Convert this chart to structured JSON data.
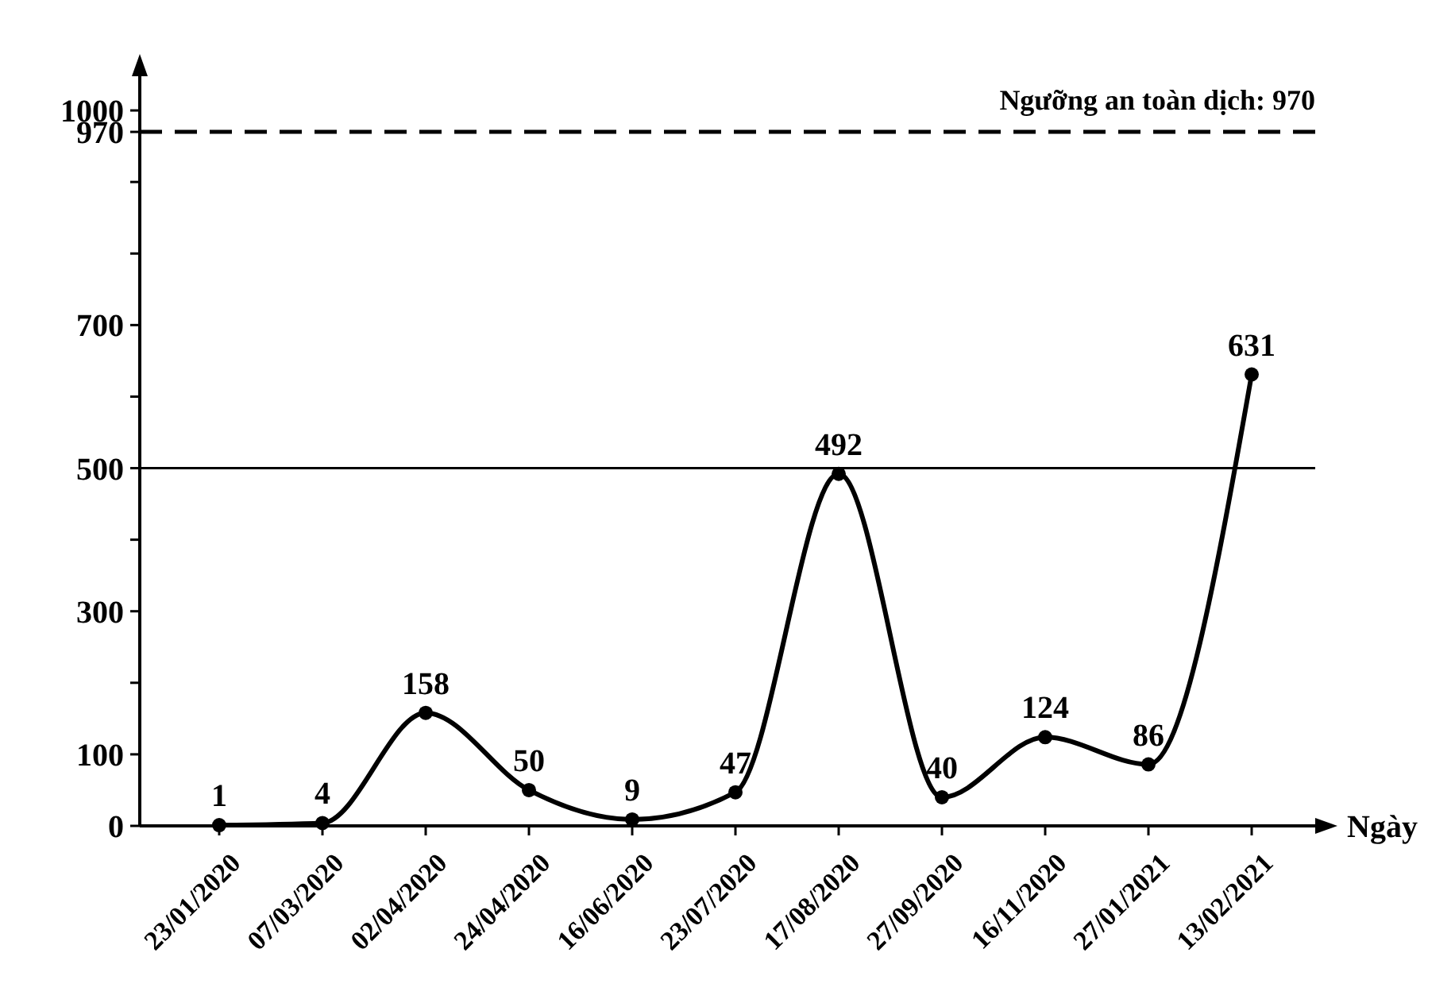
{
  "chart_data": {
    "type": "line",
    "xlabel": "Ngày",
    "categories": [
      "23/01/2020",
      "07/03/2020",
      "02/04/2020",
      "24/04/2020",
      "16/06/2020",
      "23/07/2020",
      "17/08/2020",
      "27/09/2020",
      "16/11/2020",
      "27/01/2021",
      "13/02/2021"
    ],
    "series": [
      {
        "color": "#000000",
        "values": [
          1,
          4,
          158,
          50,
          9,
          47,
          492,
          40,
          124,
          86,
          631
        ]
      }
    ],
    "ylim": [
      0,
      1070
    ],
    "yticks": [
      0,
      100,
      {
        "value": 200,
        "label": null
      },
      300,
      {
        "value": 400,
        "label": null
      },
      500,
      {
        "value": 600,
        "label": null
      },
      700,
      {
        "value": 800,
        "label": null
      },
      {
        "value": 900,
        "label": null
      },
      970,
      1000
    ],
    "ref_lines": [
      {
        "axis": "y",
        "value": 500,
        "label": null,
        "line_style": "solid"
      },
      {
        "axis": "y",
        "value": 970,
        "label": "Ngưỡng an toàn dịch: 970",
        "line_style": "dashed"
      }
    ],
    "data_labels": true,
    "marker": "circle",
    "grid": false
  }
}
